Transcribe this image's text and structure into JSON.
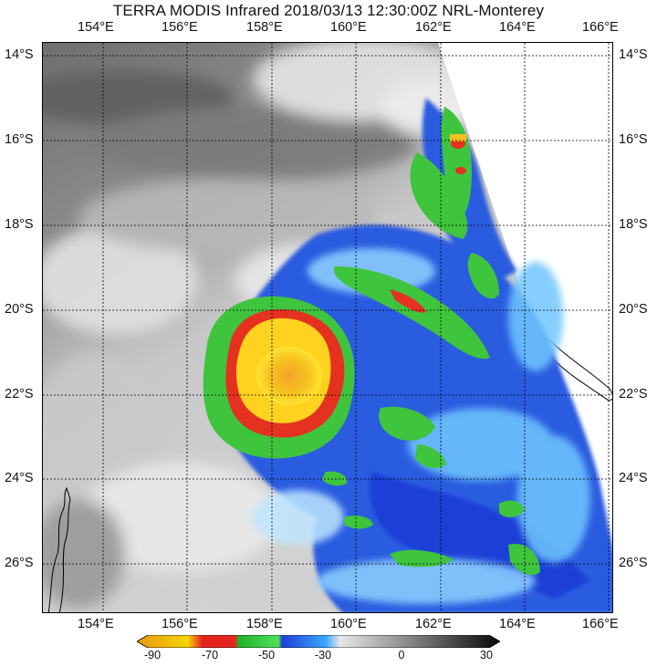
{
  "title": "TERRA MODIS Infrared 2018/03/13 12:30:00Z NRL-Monterey",
  "longitude_labels": [
    "154°E",
    "156°E",
    "158°E",
    "160°E",
    "162°E",
    "164°E",
    "166°E"
  ],
  "latitude_labels": [
    "14°S",
    "16°S",
    "18°S",
    "20°S",
    "22°S",
    "24°S",
    "26°S"
  ],
  "colorbar": {
    "tick_labels": [
      "-90",
      "-70",
      "-50",
      "-30",
      "0",
      "30"
    ],
    "colors": [
      "#e8a010",
      "#f6d40a",
      "#e5251d",
      "#22b02a",
      "#4fe15a",
      "#1f3fd6",
      "#3aa6ff",
      "#d8d8d8",
      "#111111"
    ]
  },
  "colors": {
    "eye_yellow": "#ffd21f",
    "eye_orange": "#f4a82a",
    "red_ring": "#e5311f",
    "green_band": "#3fc43e",
    "blue_cloud": "#2a5be0",
    "light_blue": "#6fc6ff",
    "cold_white": "#f2f2f2",
    "warm_gray": "#7a7a7a"
  }
}
